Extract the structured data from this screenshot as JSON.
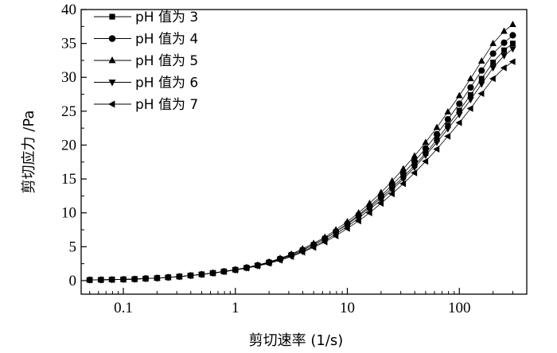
{
  "chart_data": {
    "type": "scatter",
    "xscale": "log",
    "xlim": [
      0.042,
      400
    ],
    "ylim": [
      -2,
      40
    ],
    "xticks": [
      0.1,
      1,
      10,
      100
    ],
    "xtick_labels": [
      "0.1",
      "1",
      "10",
      "100"
    ],
    "yticks": [
      0,
      5,
      10,
      15,
      20,
      25,
      30,
      35,
      40
    ],
    "ytick_labels": [
      "0",
      "5",
      "10",
      "15",
      "20",
      "25",
      "30",
      "35",
      "40"
    ],
    "xlabel": "剪切速率 (1/s)",
    "ylabel": "剪切应力 /Pa",
    "grid": false,
    "legend_position": "top-left",
    "x": [
      0.05,
      0.063,
      0.079,
      0.1,
      0.126,
      0.158,
      0.2,
      0.251,
      0.316,
      0.398,
      0.5,
      0.63,
      0.79,
      1,
      1.26,
      1.58,
      2,
      2.51,
      3.16,
      3.98,
      5,
      6.3,
      7.9,
      10,
      12.6,
      15.8,
      20,
      25.1,
      31.6,
      39.8,
      50,
      63,
      79,
      100,
      126,
      158,
      200,
      251,
      300
    ],
    "series": [
      {
        "name": "pH 值为 3",
        "marker": "square",
        "values": [
          0.1,
          0.12,
          0.15,
          0.18,
          0.22,
          0.3,
          0.38,
          0.48,
          0.6,
          0.75,
          0.92,
          1.12,
          1.35,
          1.6,
          1.9,
          2.25,
          2.7,
          3.2,
          3.8,
          4.5,
          5.3,
          6.2,
          7.2,
          8.3,
          9.5,
          10.8,
          12.2,
          13.7,
          15.3,
          17,
          18.8,
          20.8,
          22.9,
          25.1,
          27.4,
          29.8,
          32.2,
          34,
          35
        ]
      },
      {
        "name": "pH 值为 4",
        "marker": "circle",
        "values": [
          0.1,
          0.12,
          0.15,
          0.18,
          0.22,
          0.3,
          0.38,
          0.48,
          0.6,
          0.75,
          0.92,
          1.12,
          1.35,
          1.6,
          1.9,
          2.25,
          2.7,
          3.2,
          3.8,
          4.5,
          5.3,
          6.2,
          7.2,
          8.4,
          9.7,
          11,
          12.5,
          14.1,
          15.8,
          17.6,
          19.5,
          21.6,
          23.8,
          26.1,
          28.5,
          31,
          33.5,
          35.1,
          36.2
        ]
      },
      {
        "name": "pH 值为 5",
        "marker": "triangle-up",
        "values": [
          0.1,
          0.12,
          0.15,
          0.18,
          0.22,
          0.3,
          0.38,
          0.48,
          0.6,
          0.75,
          0.92,
          1.12,
          1.35,
          1.62,
          1.95,
          2.3,
          2.75,
          3.3,
          3.9,
          4.7,
          5.5,
          6.4,
          7.5,
          8.7,
          10,
          11.4,
          13,
          14.7,
          16.5,
          18.4,
          20.4,
          22.6,
          24.9,
          27.3,
          29.8,
          32.4,
          35,
          36.8,
          37.8
        ]
      },
      {
        "name": "pH 值为 6",
        "marker": "triangle-down",
        "values": [
          0.1,
          0.12,
          0.15,
          0.18,
          0.22,
          0.3,
          0.38,
          0.48,
          0.6,
          0.75,
          0.92,
          1.12,
          1.35,
          1.58,
          1.88,
          2.2,
          2.62,
          3.1,
          3.65,
          4.3,
          5.05,
          5.9,
          6.9,
          8,
          9.2,
          10.5,
          11.9,
          13.4,
          15,
          16.7,
          18.5,
          20.4,
          22.4,
          24.5,
          26.7,
          29,
          31.4,
          33.2,
          34.2
        ]
      },
      {
        "name": "pH 值为 7",
        "marker": "triangle-left",
        "values": [
          0.1,
          0.12,
          0.15,
          0.18,
          0.22,
          0.3,
          0.38,
          0.48,
          0.6,
          0.75,
          0.9,
          1.1,
          1.32,
          1.55,
          1.85,
          2.15,
          2.55,
          3,
          3.55,
          4.2,
          4.9,
          5.7,
          6.6,
          7.7,
          8.8,
          10,
          11.4,
          12.8,
          14.3,
          15.9,
          17.6,
          19.4,
          21.3,
          23.3,
          25.4,
          27.6,
          29.8,
          31.4,
          32.3
        ]
      }
    ]
  }
}
